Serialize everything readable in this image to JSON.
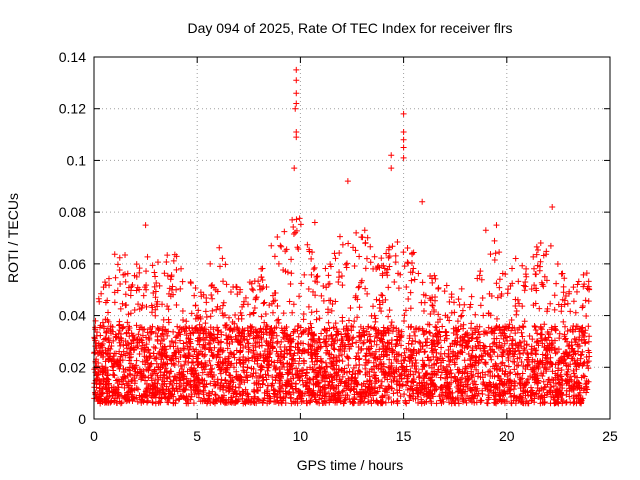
{
  "chart_data": {
    "type": "scatter",
    "title": "Day 094 of 2025, Rate Of TEC Index for receiver flrs",
    "xlabel": "GPS time / hours",
    "ylabel": "ROTI / TECUs",
    "xlim": [
      0,
      25
    ],
    "ylim": [
      0,
      0.14
    ],
    "xticks": [
      0,
      5,
      10,
      15,
      20,
      25
    ],
    "yticks": [
      0,
      0.02,
      0.04,
      0.06,
      0.08,
      0.1,
      0.12,
      0.14
    ],
    "xtick_labels": [
      "0",
      "5",
      "10",
      "15",
      "20",
      "25"
    ],
    "ytick_labels": [
      "0",
      "0.02",
      "0.04",
      "0.06",
      "0.08",
      "0.1",
      "0.12",
      "0.14"
    ],
    "grid": true,
    "marker": "+",
    "color": "#ff0000",
    "series": [
      {
        "name": "ROTI",
        "description": "dense cloud of samples between 0 and 24 h, mostly 0.005-0.04 TECU/s, with spikes",
        "x_range": [
          0,
          24
        ],
        "envelope_hours": [
          0,
          1,
          2,
          3,
          4,
          5,
          6,
          7,
          8,
          9,
          10,
          11,
          12,
          13,
          14,
          15,
          16,
          17,
          18,
          19,
          20,
          21,
          22,
          23,
          24
        ],
        "envelope_max": [
          0.042,
          0.065,
          0.062,
          0.064,
          0.066,
          0.05,
          0.068,
          0.05,
          0.058,
          0.075,
          0.078,
          0.058,
          0.072,
          0.075,
          0.065,
          0.07,
          0.06,
          0.052,
          0.05,
          0.075,
          0.062,
          0.065,
          0.072,
          0.05,
          0.06
        ],
        "outliers": [
          {
            "x": 9.8,
            "y": 0.135
          },
          {
            "x": 9.8,
            "y": 0.131
          },
          {
            "x": 9.8,
            "y": 0.126
          },
          {
            "x": 9.8,
            "y": 0.122
          },
          {
            "x": 9.75,
            "y": 0.12
          },
          {
            "x": 9.8,
            "y": 0.111
          },
          {
            "x": 9.8,
            "y": 0.109
          },
          {
            "x": 9.7,
            "y": 0.097
          },
          {
            "x": 12.3,
            "y": 0.092
          },
          {
            "x": 14.4,
            "y": 0.102
          },
          {
            "x": 14.4,
            "y": 0.097
          },
          {
            "x": 15.0,
            "y": 0.118
          },
          {
            "x": 15.0,
            "y": 0.111
          },
          {
            "x": 15.0,
            "y": 0.108
          },
          {
            "x": 15.0,
            "y": 0.105
          },
          {
            "x": 15.0,
            "y": 0.101
          },
          {
            "x": 15.9,
            "y": 0.084
          },
          {
            "x": 22.2,
            "y": 0.082
          },
          {
            "x": 2.5,
            "y": 0.075
          },
          {
            "x": 9.6,
            "y": 0.077
          },
          {
            "x": 10.7,
            "y": 0.076
          },
          {
            "x": 12.7,
            "y": 0.072
          },
          {
            "x": 19.5,
            "y": 0.075
          }
        ]
      }
    ]
  }
}
